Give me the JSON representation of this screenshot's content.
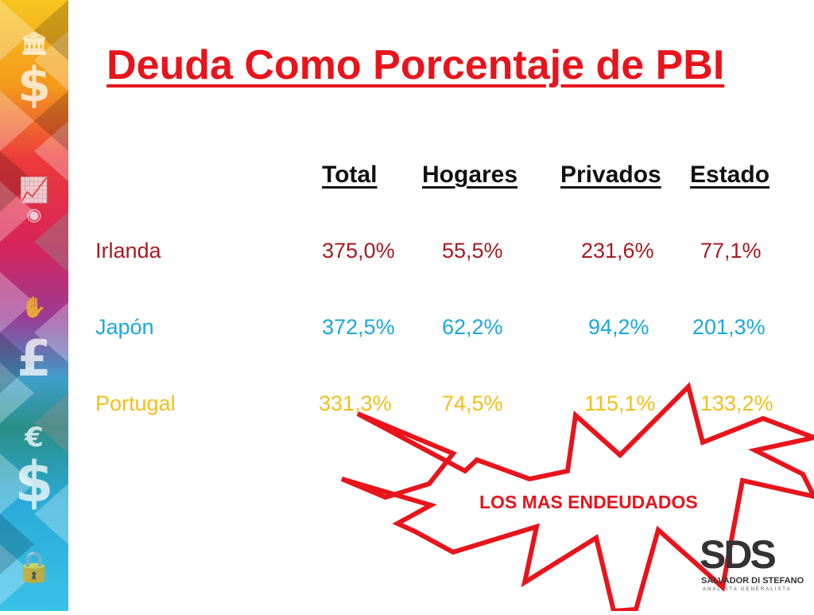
{
  "title": "Deuda Como Porcentaje de PBI",
  "table": {
    "headers": [
      "Total",
      "Hogares",
      "Privados",
      "Estado"
    ],
    "rows": [
      {
        "country": "Irlanda",
        "total": "375,0%",
        "hogares": "55,5%",
        "privados": "231,6%",
        "estado": "77,1%"
      },
      {
        "country": "Japón",
        "total": "372,5%",
        "hogares": "62,2%",
        "privados": "94,2%",
        "estado": "201,3%"
      },
      {
        "country": "Portugal",
        "total": "331,3%",
        "hogares": "74,5%",
        "privados": "115,1%",
        "estado": "133,2%"
      }
    ]
  },
  "callout": {
    "label": "LOS MAS ENDEUDADOS"
  },
  "logo": {
    "letters": "SDS",
    "name": "SALVADOR DI STEFANO",
    "subtitle": "ANALISTA GENERALISTA"
  },
  "colors": {
    "title": "#e8141c",
    "irlanda": "#a71a20",
    "japon": "#1aa7e0",
    "portugal": "#f2bf1a",
    "burst_stroke": "#e8141c"
  },
  "side_icons": [
    "bank-icon",
    "dollar-icon",
    "chart-growth-icon",
    "coins-icon",
    "money-hand-icon",
    "pound-icon",
    "euro-icon",
    "dollar-icon",
    "lock-dollar-icon"
  ]
}
